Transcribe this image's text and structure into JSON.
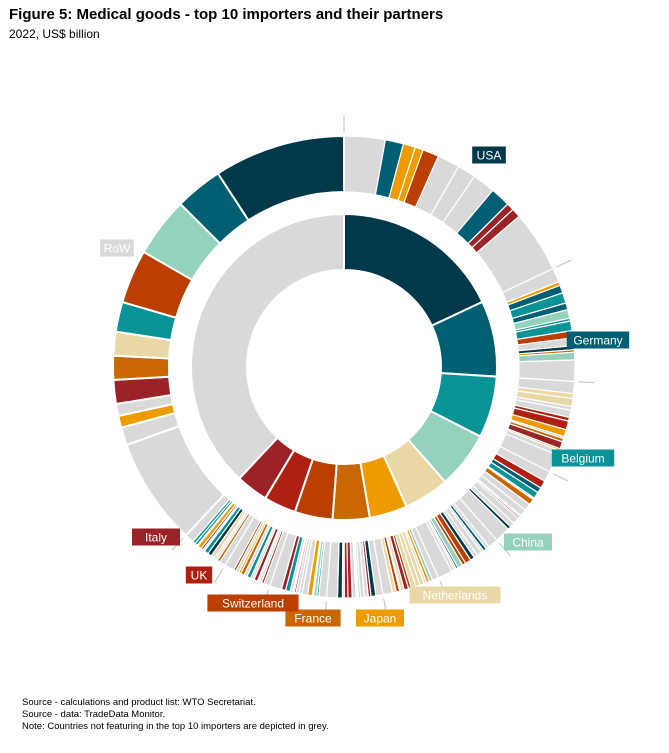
{
  "title": "Figure 5: Medical goods - top 10 importers and their partners",
  "subtitle": "2022, US$ billion",
  "notes": [
    "Source - calculations and product list: WTO Secretariat.",
    "Source - data: TradeData Monitor.",
    "Note: Countries not featuring in the top 10 importers are depicted in grey."
  ],
  "chart_data": {
    "type": "donut",
    "inner_ring": {
      "description": "Top 10 importers share of medical goods imports",
      "series": [
        {
          "name": "USA",
          "value": 18,
          "color": "#003a4a"
        },
        {
          "name": "Germany",
          "value": 8,
          "color": "#005f73"
        },
        {
          "name": "Belgium",
          "value": 6.5,
          "color": "#0a9396"
        },
        {
          "name": "China",
          "value": 6,
          "color": "#94d2bd"
        },
        {
          "name": "Netherlands",
          "value": 4.8,
          "color": "#e9d8a6"
        },
        {
          "name": "Japan",
          "value": 4,
          "color": "#ee9b00"
        },
        {
          "name": "France",
          "value": 3.9,
          "color": "#ca6702"
        },
        {
          "name": "Switzerland",
          "value": 4,
          "color": "#bb3e03"
        },
        {
          "name": "UK",
          "value": 3.4,
          "color": "#ae2012"
        },
        {
          "name": "Italy",
          "value": 3.4,
          "color": "#9b2226"
        },
        {
          "name": "RoW",
          "value": 38,
          "color": "#d9d9d9"
        }
      ]
    },
    "outer_ring": "Partner breakdown for each importer; partners not featuring in the top 10 importers shown in grey",
    "labels": [
      {
        "text": "USA",
        "color": "#003a4a"
      },
      {
        "text": "Germany",
        "color": "#005f73"
      },
      {
        "text": "Belgium",
        "color": "#0a9396"
      },
      {
        "text": "China",
        "color": "#94d2bd"
      },
      {
        "text": "Netherlands",
        "color": "#e9d8a6"
      },
      {
        "text": "Japan",
        "color": "#ee9b00"
      },
      {
        "text": "France",
        "color": "#ca6702"
      },
      {
        "text": "Switzerland",
        "color": "#bb3e03"
      },
      {
        "text": "UK",
        "color": "#ae2012"
      },
      {
        "text": "Italy",
        "color": "#9b2226"
      },
      {
        "text": "RoW",
        "color": "#d9d9d9"
      }
    ]
  }
}
